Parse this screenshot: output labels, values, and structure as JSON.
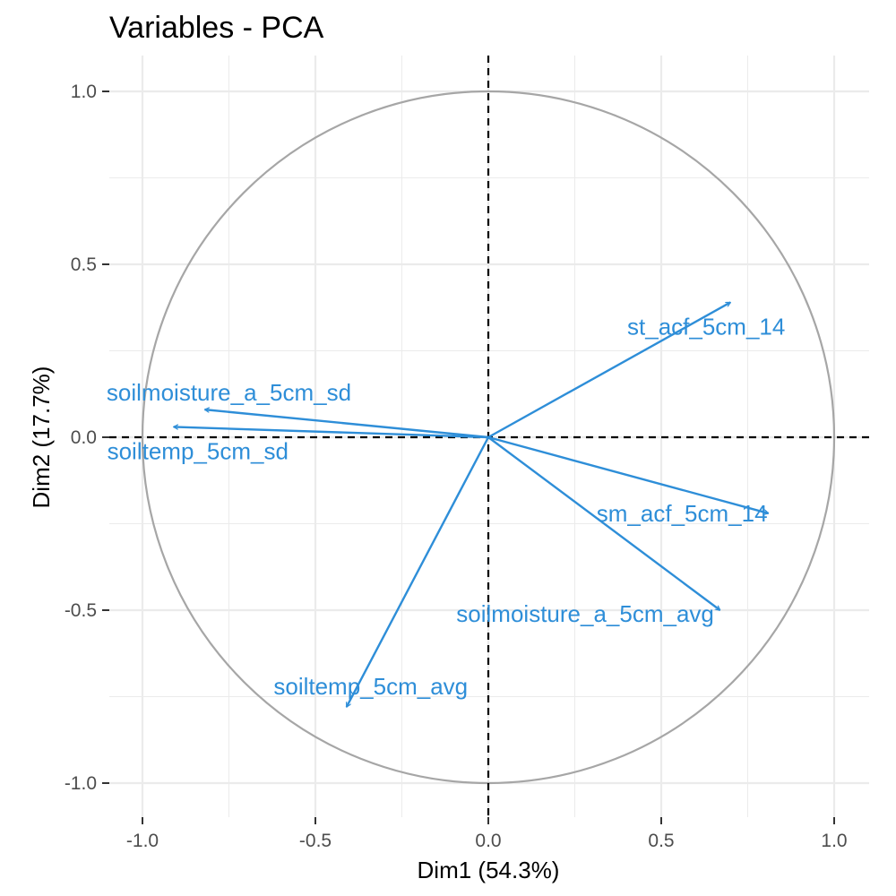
{
  "chart_data": {
    "type": "scatter",
    "title": "Variables - PCA",
    "xlabel": "Dim1 (54.3%)",
    "ylabel": "Dim2 (17.7%)",
    "xlim": [
      -1.1,
      1.1
    ],
    "ylim": [
      -1.075,
      1.12
    ],
    "x_ticks": [
      -1.0,
      -0.5,
      0.0,
      0.5,
      1.0
    ],
    "x_tick_labels": [
      "-1.0",
      "-0.5",
      "0.0",
      "0.5",
      "1.0"
    ],
    "y_ticks": [
      -1.0,
      -0.5,
      0.0,
      0.5,
      1.0
    ],
    "y_tick_labels": [
      "-1.0",
      "-0.5",
      "0.0",
      "0.5",
      "1.0"
    ],
    "grid": true,
    "reference_lines": [
      0,
      0
    ],
    "unit_circle": true,
    "arrow_color": "#2E8ED8",
    "circle_color": "#A6A6A6",
    "grid_color": "#EBEBEB",
    "variables": [
      {
        "name": "st_acf_5cm_14",
        "x": 0.7,
        "y": 0.39,
        "label_x": 0.63,
        "label_y": 0.32
      },
      {
        "name": "soilmoisture_a_5cm_sd",
        "x": -0.82,
        "y": 0.08,
        "label_x": -0.75,
        "label_y": 0.13
      },
      {
        "name": "soiltemp_5cm_sd",
        "x": -0.91,
        "y": 0.03,
        "label_x": -0.84,
        "label_y": -0.04
      },
      {
        "name": "sm_acf_5cm_14",
        "x": 0.81,
        "y": -0.22,
        "label_x": 0.56,
        "label_y": -0.22
      },
      {
        "name": "soilmoisture_a_5cm_avg",
        "x": 0.67,
        "y": -0.5,
        "label_x": 0.28,
        "label_y": -0.51
      },
      {
        "name": "soiltemp_5cm_avg",
        "x": -0.41,
        "y": -0.78,
        "label_x": -0.34,
        "label_y": -0.72
      }
    ]
  }
}
